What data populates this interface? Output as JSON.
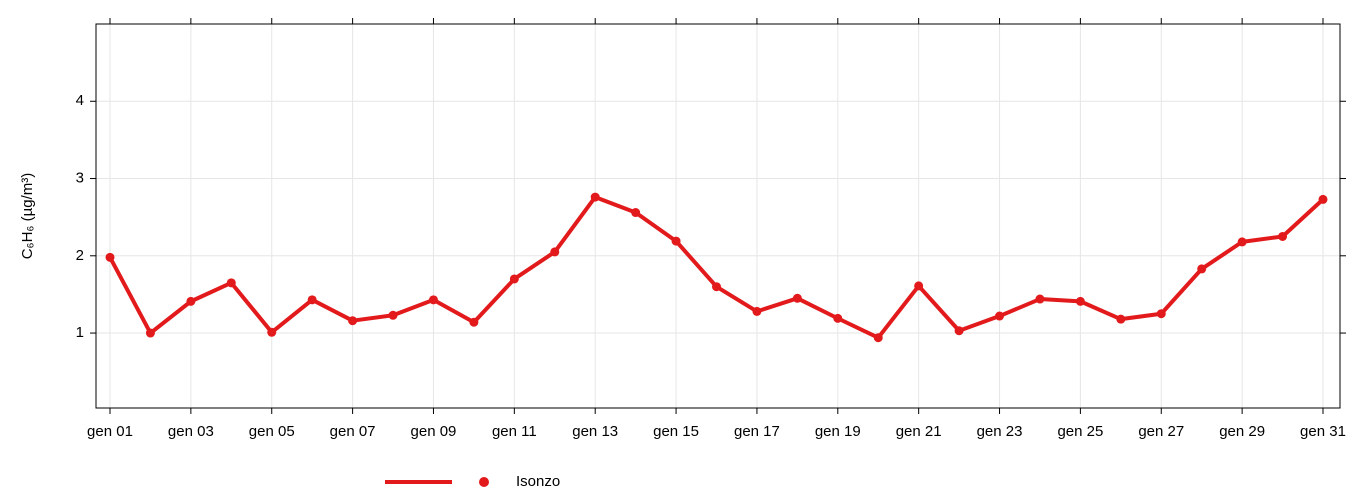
{
  "chart_data": {
    "type": "line",
    "ylabel": "C₆H₆ (µg/m³)",
    "categories": [
      "gen 01",
      null,
      "gen 03",
      null,
      "gen 05",
      null,
      "gen 07",
      null,
      "gen 09",
      null,
      "gen 11",
      null,
      "gen 13",
      null,
      "gen 15",
      null,
      "gen 17",
      null,
      "gen 19",
      null,
      "gen 21",
      null,
      "gen 23",
      null,
      "gen 25",
      null,
      "gen 27",
      null,
      "gen 29",
      null,
      "gen 31"
    ],
    "series": [
      {
        "name": "Isonzo",
        "color": "#e31a1c",
        "values": [
          1.98,
          1.0,
          1.41,
          1.65,
          1.01,
          1.43,
          1.16,
          1.23,
          1.43,
          1.14,
          1.7,
          2.05,
          2.76,
          2.56,
          2.19,
          1.6,
          1.28,
          1.45,
          1.19,
          0.94,
          1.61,
          1.03,
          1.22,
          1.44,
          1.41,
          1.18,
          1.25,
          1.83,
          2.18,
          2.25,
          2.73
        ]
      }
    ],
    "ylim": [
      0.03,
      5.0
    ],
    "yticks": [
      1,
      2,
      3,
      4
    ],
    "grid": true,
    "legend": "bottom"
  }
}
